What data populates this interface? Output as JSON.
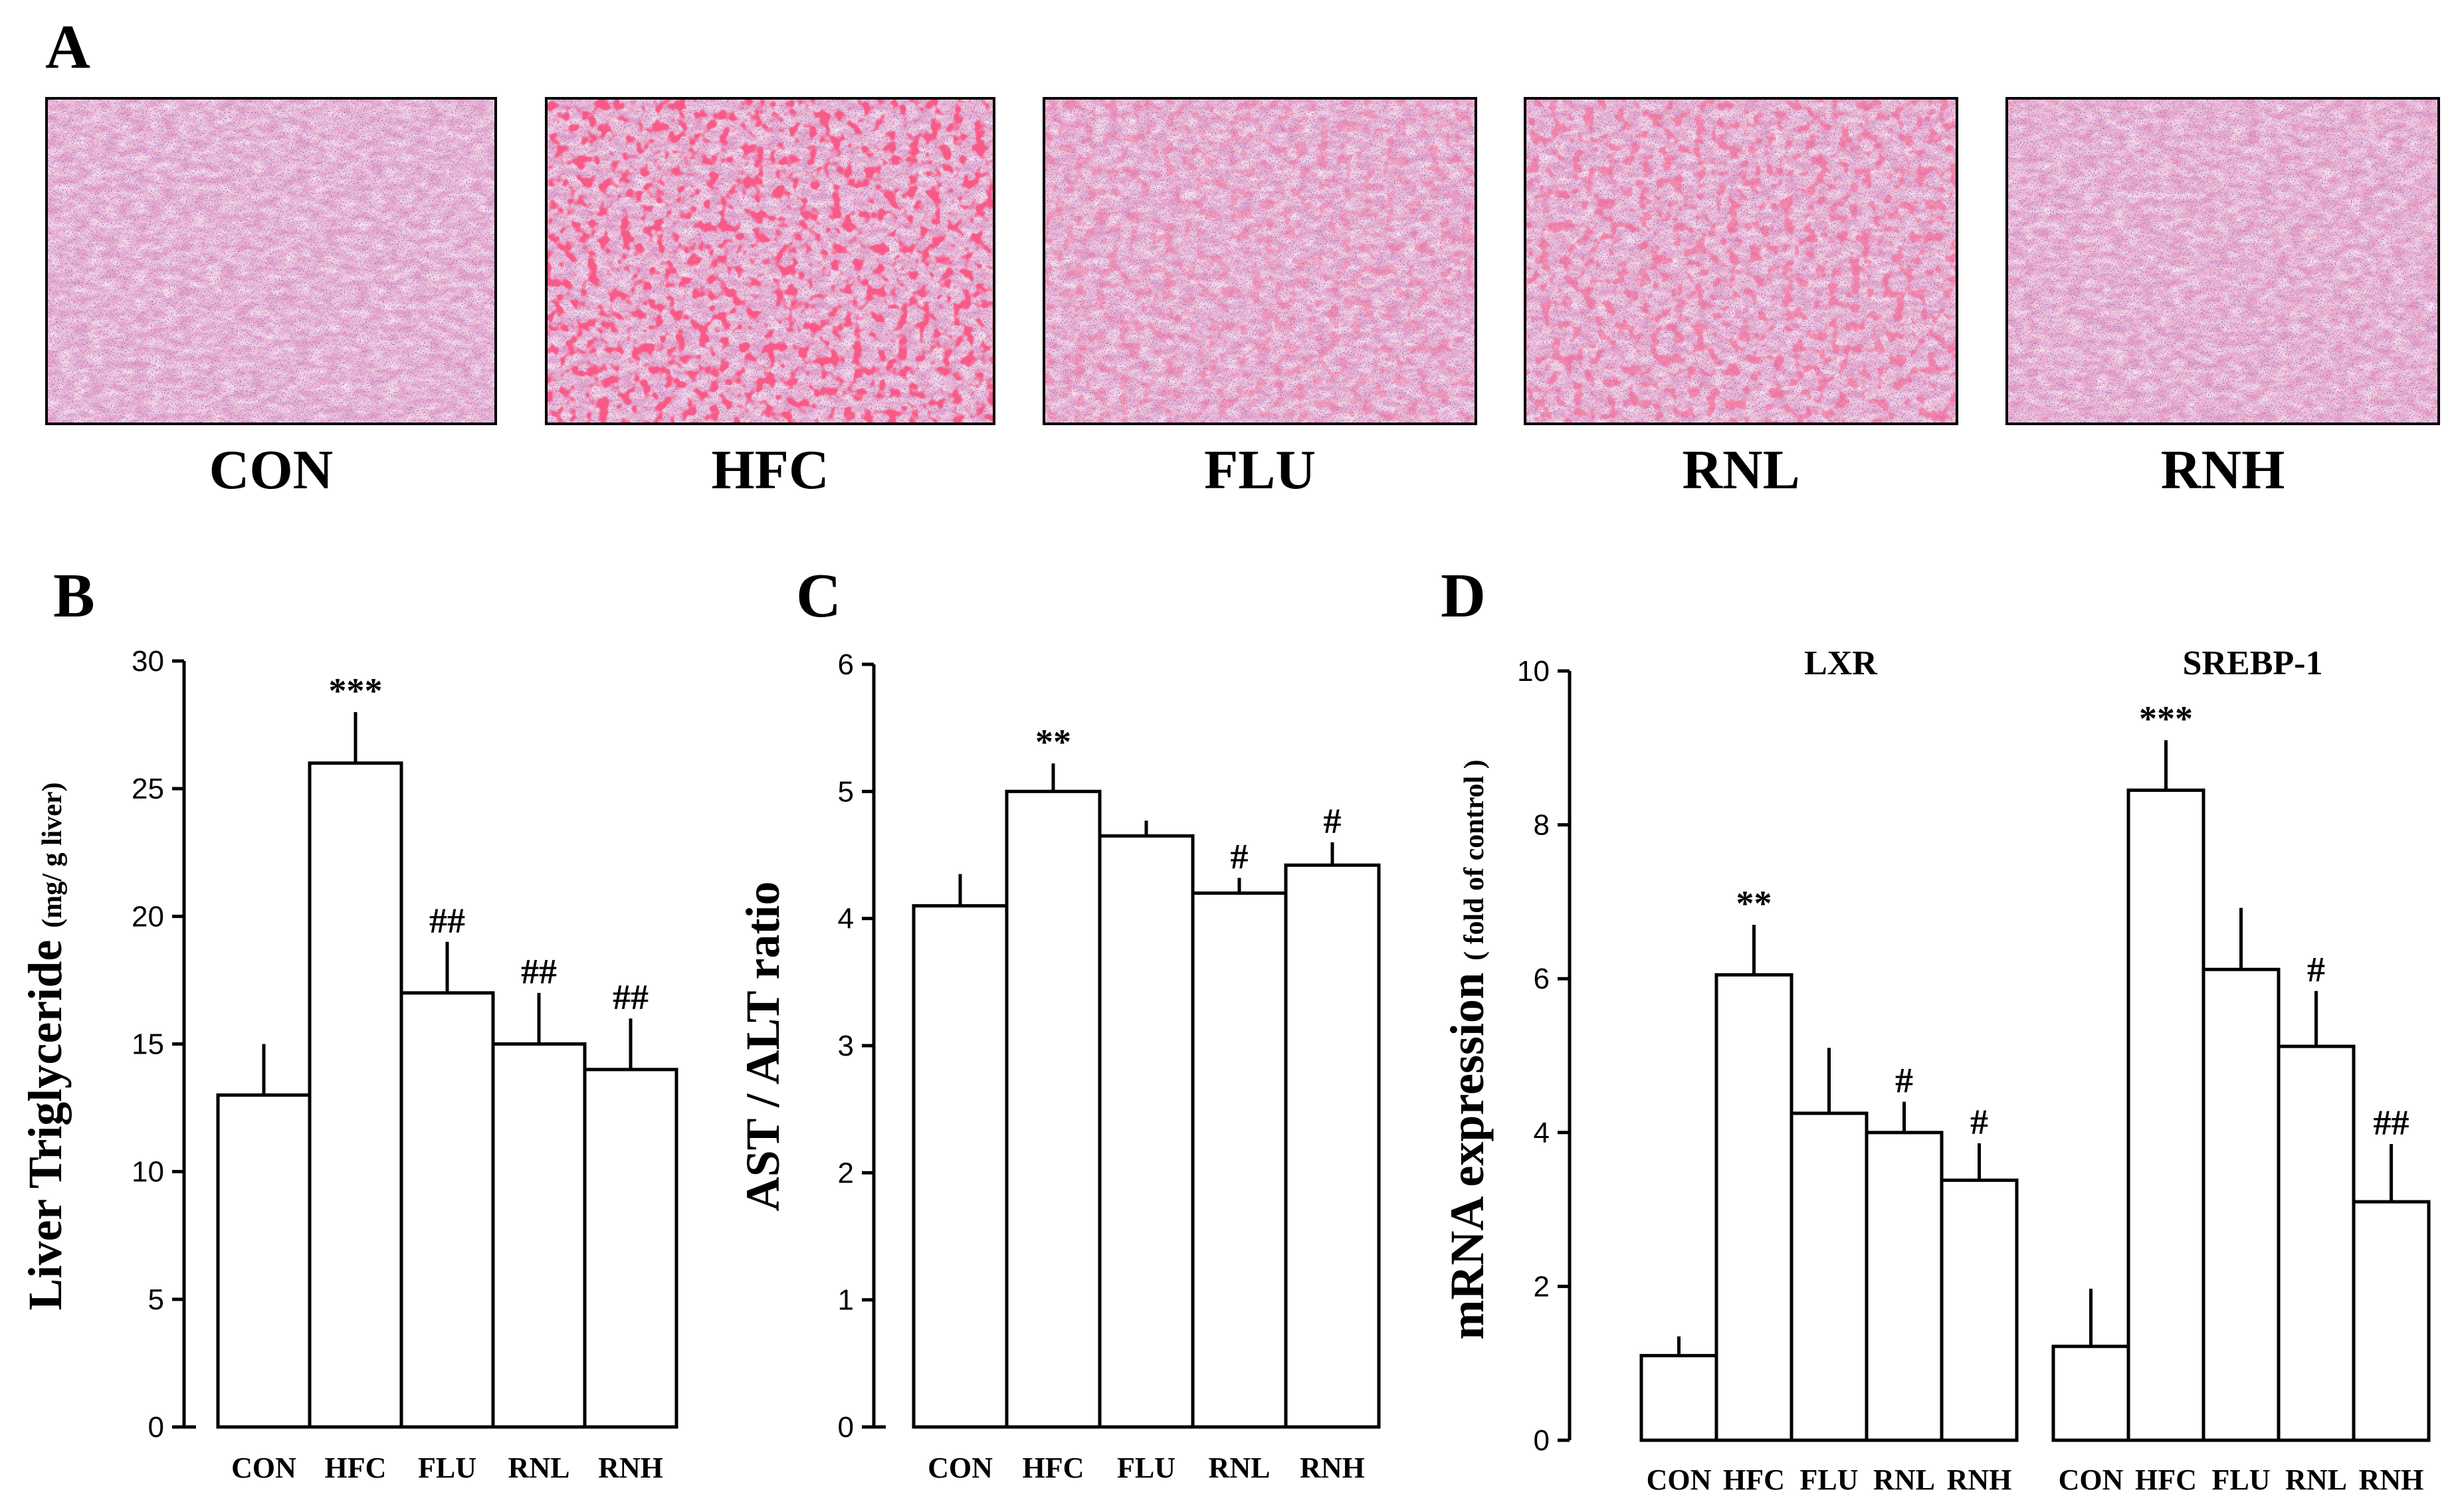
{
  "panels": {
    "a_letter": "A",
    "b_letter": "B",
    "c_letter": "C",
    "d_letter": "D"
  },
  "histology": {
    "labels": [
      "CON",
      "HFC",
      "FLU",
      "RNL",
      "RNH"
    ],
    "colors": {
      "base": "#e6a2c9",
      "nuclei": "#4a2d88",
      "cytoplasm": "#f2c8dd",
      "lipid_red": "#f01a3c",
      "border": "#000000"
    }
  },
  "chart_data": [
    {
      "type": "bar",
      "panel": "B",
      "categories": [
        "CON",
        "HFC",
        "FLU",
        "RNL",
        "RNH"
      ],
      "values": [
        13,
        26,
        17,
        15,
        14
      ],
      "errors": [
        2,
        2,
        2,
        2,
        2
      ],
      "significance": [
        "",
        "***",
        "##",
        "##",
        "##"
      ],
      "ylabel_main": "Liver Triglyceride",
      "ylabel_unit": "(mg/ g liver)",
      "ylim": [
        0,
        30
      ],
      "yticks": [
        0,
        5,
        10,
        15,
        20,
        25,
        30
      ],
      "grid": false
    },
    {
      "type": "bar",
      "panel": "C",
      "categories": [
        "CON",
        "HFC",
        "FLU",
        "RNL",
        "RNH"
      ],
      "values": [
        4.1,
        5.0,
        4.65,
        4.2,
        4.42
      ],
      "errors": [
        0.25,
        0.22,
        0.12,
        0.12,
        0.18
      ],
      "significance": [
        "",
        "**",
        "",
        "#",
        "#"
      ],
      "ylabel_main": "AST / ALT ratio",
      "ylim": [
        0,
        6
      ],
      "yticks": [
        0,
        1,
        2,
        3,
        4,
        5,
        6
      ],
      "grid": false
    },
    {
      "type": "bar",
      "panel": "D",
      "ylabel_main": "mRNA expression",
      "ylabel_unit": "( fold of control )",
      "ylim": [
        0,
        10
      ],
      "yticks": [
        0,
        2,
        4,
        6,
        8,
        10
      ],
      "grid": false,
      "groups": [
        {
          "title": "LXR",
          "categories": [
            "CON",
            "HFC",
            "FLU",
            "RNL",
            "RNH"
          ],
          "values": [
            1.1,
            6.05,
            4.25,
            4.0,
            3.38
          ],
          "errors": [
            0.25,
            0.65,
            0.85,
            0.4,
            0.48
          ],
          "significance": [
            "",
            "**",
            "",
            "#",
            "#"
          ]
        },
        {
          "title": "SREBP-1",
          "categories": [
            "CON",
            "HFC",
            "FLU",
            "RNL",
            "RNH"
          ],
          "values": [
            1.22,
            8.45,
            6.12,
            5.12,
            3.1
          ],
          "errors": [
            0.75,
            0.65,
            0.8,
            0.72,
            0.75
          ],
          "significance": [
            "",
            "***",
            "",
            "#",
            "##"
          ]
        }
      ]
    }
  ]
}
